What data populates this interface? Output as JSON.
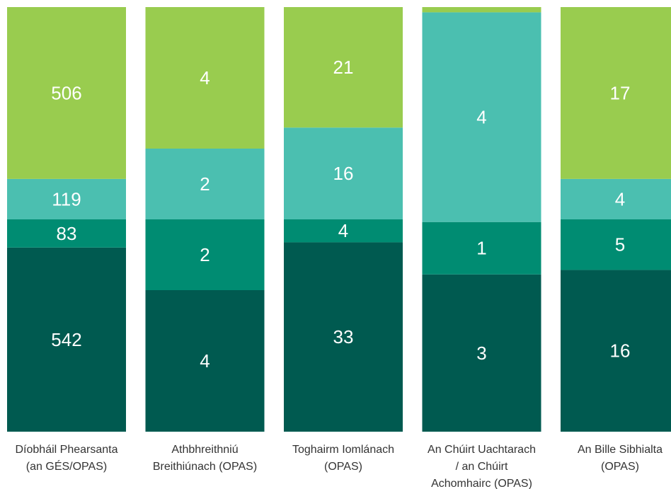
{
  "chart_data": {
    "type": "stacked_bar_percent",
    "categories": [
      [
        "Díobháil Phearsanta",
        "(an GÉS/OPAS)"
      ],
      [
        "Athbhreithniú",
        "Breithiúnach (OPAS)"
      ],
      [
        "Toghairm Iomlánach",
        "(OPAS)"
      ],
      [
        "An Chúirt Uachtarach",
        "/ an Chúirt",
        "Achomhairc (OPAS)"
      ],
      [
        "An Bille Sibhialta",
        "(OPAS)"
      ]
    ],
    "series": [
      {
        "color": "#005a50",
        "values": [
          542,
          4,
          33,
          3,
          16
        ]
      },
      {
        "color": "#008c72",
        "values": [
          83,
          2,
          4,
          1,
          5
        ]
      },
      {
        "color": "#4bbfb0",
        "values": [
          119,
          2,
          16,
          4,
          4
        ]
      },
      {
        "color": "#99cc4f",
        "values": [
          506,
          4,
          21,
          0.1,
          17
        ]
      }
    ]
  }
}
